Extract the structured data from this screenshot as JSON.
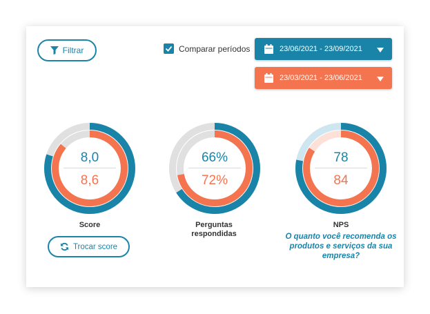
{
  "toolbar": {
    "filter_label": "Filtrar",
    "compare_label": "Comparar períodos",
    "compare_checked": true,
    "period_current": "23/06/2021 - 23/09/2021",
    "period_previous": "23/03/2021 - 23/06/2021"
  },
  "colors": {
    "primary": "#1a84a8",
    "secondary": "#f4744f",
    "track": "#e0e0e0"
  },
  "gauges": [
    {
      "label": "Score",
      "current": "8,0",
      "previous": "8,6",
      "current_fraction": 0.8,
      "previous_fraction": 0.86
    },
    {
      "label": "Perguntas respondidas",
      "current": "66%",
      "previous": "72%",
      "current_fraction": 0.66,
      "previous_fraction": 0.72
    },
    {
      "label": "NPS",
      "current": "78",
      "previous": "84",
      "current_fraction": 0.78,
      "previous_fraction": 0.84
    }
  ],
  "nps_question": "O quanto você recomenda os produtos e serviços da sua empresa?",
  "trocar_label": "Trocar score"
}
